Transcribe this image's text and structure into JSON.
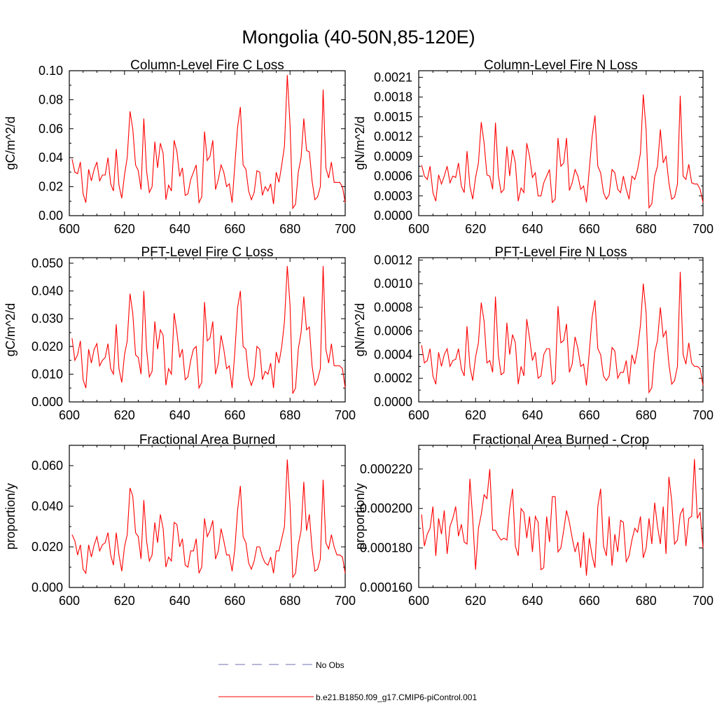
{
  "figure": {
    "title": "Mongolia (40-50N,85-120E)",
    "legend": [
      {
        "label": "No Obs",
        "color": "#6f6fb0",
        "dash": "dashed"
      },
      {
        "label": "b.e21.B1850.f09_g17.CMIP6-piControl.001",
        "color": "#ff0000",
        "dash": "solid"
      }
    ]
  },
  "chart_data": [
    {
      "type": "line",
      "title": "Column-Level Fire C Loss",
      "ylabel": "gC/m^2/d",
      "xlim": [
        600,
        700
      ],
      "ylim": [
        0,
        0.1
      ],
      "xticks": [
        "600",
        "620",
        "640",
        "660",
        "680",
        "700"
      ],
      "yticks": [
        "0.00",
        "0.02",
        "0.04",
        "0.06",
        "0.08",
        "0.10"
      ],
      "color": "#ff0000",
      "x_start": 601,
      "values": [
        0.039,
        0.03,
        0.029,
        0.037,
        0.015,
        0.009,
        0.032,
        0.024,
        0.032,
        0.037,
        0.024,
        0.028,
        0.028,
        0.04,
        0.022,
        0.017,
        0.046,
        0.021,
        0.012,
        0.028,
        0.04,
        0.072,
        0.06,
        0.035,
        0.031,
        0.018,
        0.067,
        0.031,
        0.016,
        0.02,
        0.051,
        0.033,
        0.05,
        0.043,
        0.011,
        0.021,
        0.017,
        0.052,
        0.044,
        0.027,
        0.033,
        0.014,
        0.015,
        0.025,
        0.03,
        0.035,
        0.009,
        0.013,
        0.058,
        0.038,
        0.041,
        0.052,
        0.018,
        0.025,
        0.035,
        0.03,
        0.02,
        0.022,
        0.009,
        0.035,
        0.061,
        0.075,
        0.035,
        0.032,
        0.017,
        0.011,
        0.016,
        0.031,
        0.03,
        0.014,
        0.02,
        0.017,
        0.022,
        0.008,
        0.03,
        0.023,
        0.035,
        0.048,
        0.097,
        0.063,
        0.005,
        0.008,
        0.03,
        0.04,
        0.067,
        0.045,
        0.044,
        0.024,
        0.011,
        0.013,
        0.02,
        0.087,
        0.033,
        0.026,
        0.037,
        0.023,
        0.023,
        0.023,
        0.02,
        0.009
      ]
    },
    {
      "type": "line",
      "title": "Column-Level Fire N Loss",
      "ylabel": "gN/m^2/d",
      "xlim": [
        600,
        700
      ],
      "ylim": [
        0,
        0.0022
      ],
      "xticks": [
        "600",
        "620",
        "640",
        "660",
        "680",
        "700"
      ],
      "yticks": [
        "0.0000",
        "0.0003",
        "0.0006",
        "0.0009",
        "0.0012",
        "0.0015",
        "0.0018",
        "0.0021"
      ],
      "color": "#ff0000",
      "x_start": 601,
      "values": [
        0.00077,
        0.0006,
        0.00055,
        0.00075,
        0.00035,
        0.00022,
        0.00062,
        0.00048,
        0.0006,
        0.00075,
        0.0005,
        0.0006,
        0.00058,
        0.0008,
        0.00045,
        0.00035,
        0.00098,
        0.00045,
        0.00025,
        0.00058,
        0.0008,
        0.00142,
        0.0011,
        0.00062,
        0.0006,
        0.0004,
        0.00141,
        0.00062,
        0.00035,
        0.0004,
        0.00105,
        0.0006,
        0.001,
        0.0008,
        0.00022,
        0.00042,
        0.00035,
        0.0011,
        0.0009,
        0.00058,
        0.00065,
        0.0003,
        0.0003,
        0.0005,
        0.0006,
        0.0007,
        0.0002,
        0.00025,
        0.00118,
        0.00075,
        0.0008,
        0.00118,
        0.00038,
        0.0005,
        0.0007,
        0.0006,
        0.0004,
        0.00045,
        0.0002,
        0.0007,
        0.0012,
        0.00152,
        0.00075,
        0.00065,
        0.00035,
        0.00025,
        0.00032,
        0.0007,
        0.00065,
        0.0004,
        0.00035,
        0.0006,
        0.0004,
        0.00025,
        0.0006,
        0.00055,
        0.0007,
        0.00095,
        0.00184,
        0.0013,
        0.00012,
        0.00018,
        0.0006,
        0.00075,
        0.00131,
        0.0008,
        0.0009,
        0.0005,
        0.00025,
        0.00028,
        0.00048,
        0.00182,
        0.0006,
        0.00055,
        0.00078,
        0.0005,
        0.00048,
        0.00048,
        0.0004,
        0.0002
      ]
    },
    {
      "type": "line",
      "title": "PFT-Level Fire C Loss",
      "ylabel": "gC/m^2/d",
      "xlim": [
        600,
        700
      ],
      "ylim": [
        0,
        0.052
      ],
      "xticks": [
        "600",
        "620",
        "640",
        "660",
        "680",
        "700"
      ],
      "yticks": [
        "0.000",
        "0.010",
        "0.020",
        "0.030",
        "0.040",
        "0.050"
      ],
      "color": "#ff0000",
      "x_start": 601,
      "values": [
        0.023,
        0.015,
        0.017,
        0.022,
        0.008,
        0.005,
        0.019,
        0.014,
        0.019,
        0.021,
        0.013,
        0.015,
        0.016,
        0.021,
        0.012,
        0.01,
        0.028,
        0.012,
        0.007,
        0.017,
        0.022,
        0.039,
        0.032,
        0.017,
        0.016,
        0.01,
        0.04,
        0.019,
        0.009,
        0.011,
        0.029,
        0.019,
        0.026,
        0.024,
        0.006,
        0.012,
        0.01,
        0.032,
        0.025,
        0.016,
        0.019,
        0.008,
        0.009,
        0.015,
        0.019,
        0.02,
        0.005,
        0.007,
        0.036,
        0.022,
        0.023,
        0.029,
        0.01,
        0.014,
        0.024,
        0.019,
        0.012,
        0.013,
        0.005,
        0.018,
        0.034,
        0.04,
        0.02,
        0.019,
        0.009,
        0.006,
        0.009,
        0.02,
        0.019,
        0.008,
        0.011,
        0.01,
        0.014,
        0.005,
        0.018,
        0.014,
        0.02,
        0.029,
        0.049,
        0.035,
        0.003,
        0.005,
        0.019,
        0.025,
        0.038,
        0.026,
        0.027,
        0.013,
        0.006,
        0.008,
        0.012,
        0.049,
        0.019,
        0.014,
        0.021,
        0.013,
        0.013,
        0.013,
        0.012,
        0.005
      ]
    },
    {
      "type": "line",
      "title": "PFT-Level Fire N Loss",
      "ylabel": "gN/m^2/d",
      "xlim": [
        600,
        700
      ],
      "ylim": [
        0,
        0.00122
      ],
      "xticks": [
        "600",
        "620",
        "640",
        "660",
        "680",
        "700"
      ],
      "yticks": [
        "0.0000",
        "0.0002",
        "0.0004",
        "0.0006",
        "0.0008",
        "0.0010",
        "0.0012"
      ],
      "color": "#ff0000",
      "x_start": 601,
      "values": [
        0.00048,
        0.00033,
        0.00035,
        0.00045,
        0.00022,
        0.00015,
        0.00042,
        0.0003,
        0.0004,
        0.00045,
        0.0003,
        0.00035,
        0.00036,
        0.00045,
        0.00028,
        0.00022,
        0.00064,
        0.0003,
        0.00018,
        0.00038,
        0.0005,
        0.00084,
        0.00068,
        0.00033,
        0.00035,
        0.00025,
        0.00089,
        0.0004,
        0.00023,
        0.00025,
        0.00067,
        0.0004,
        0.00057,
        0.0005,
        0.00015,
        0.0003,
        0.00022,
        0.0007,
        0.00054,
        0.00035,
        0.00042,
        0.0002,
        0.00022,
        0.0004,
        0.00045,
        0.00045,
        0.00015,
        0.00018,
        0.00081,
        0.0005,
        0.00052,
        0.00066,
        0.00025,
        0.00032,
        0.00055,
        0.00045,
        0.0003,
        0.00032,
        0.00014,
        0.00042,
        0.00072,
        0.00086,
        0.00045,
        0.0004,
        0.00022,
        0.00018,
        0.00022,
        0.00046,
        0.00043,
        0.0002,
        0.00025,
        0.00025,
        0.00035,
        0.00015,
        0.0004,
        0.00032,
        0.00045,
        0.00065,
        0.001,
        0.00075,
        8e-05,
        0.00012,
        0.00042,
        0.00052,
        0.0008,
        0.00055,
        0.0006,
        0.00032,
        0.00015,
        0.00018,
        0.0003,
        0.0011,
        0.0004,
        0.00032,
        0.0005,
        0.00033,
        0.0003,
        0.0003,
        0.00028,
        0.00014
      ]
    },
    {
      "type": "line",
      "title": "Fractional Area Burned",
      "ylabel": "proportion/y",
      "xlim": [
        600,
        700
      ],
      "ylim": [
        0,
        0.07
      ],
      "xticks": [
        "600",
        "620",
        "640",
        "660",
        "680",
        "700"
      ],
      "yticks": [
        "0.000",
        "0.020",
        "0.040",
        "0.060"
      ],
      "color": "#ff0000",
      "x_start": 601,
      "values": [
        0.026,
        0.023,
        0.016,
        0.021,
        0.009,
        0.007,
        0.021,
        0.015,
        0.021,
        0.025,
        0.018,
        0.021,
        0.022,
        0.027,
        0.016,
        0.011,
        0.027,
        0.016,
        0.008,
        0.02,
        0.026,
        0.049,
        0.045,
        0.027,
        0.025,
        0.014,
        0.043,
        0.023,
        0.013,
        0.016,
        0.032,
        0.022,
        0.036,
        0.029,
        0.01,
        0.015,
        0.013,
        0.032,
        0.031,
        0.02,
        0.024,
        0.011,
        0.01,
        0.018,
        0.018,
        0.024,
        0.007,
        0.01,
        0.034,
        0.025,
        0.028,
        0.033,
        0.014,
        0.018,
        0.029,
        0.023,
        0.016,
        0.016,
        0.008,
        0.019,
        0.038,
        0.05,
        0.025,
        0.022,
        0.012,
        0.009,
        0.013,
        0.02,
        0.02,
        0.015,
        0.012,
        0.011,
        0.015,
        0.007,
        0.018,
        0.018,
        0.024,
        0.03,
        0.063,
        0.041,
        0.005,
        0.007,
        0.021,
        0.028,
        0.052,
        0.028,
        0.036,
        0.019,
        0.008,
        0.009,
        0.014,
        0.053,
        0.022,
        0.019,
        0.026,
        0.02,
        0.016,
        0.016,
        0.015,
        0.007
      ]
    },
    {
      "type": "line",
      "title": "Fractional Area Burned - Crop",
      "ylabel": "proportion/y",
      "xlim": [
        600,
        700
      ],
      "ylim": [
        0.00016,
        0.000232
      ],
      "xticks": [
        "600",
        "620",
        "640",
        "660",
        "680",
        "700"
      ],
      "yticks": [
        "0.000160",
        "0.000180",
        "0.000200",
        "0.000220"
      ],
      "color": "#ff0000",
      "x_start": 601,
      "values": [
        0.000197,
        0.000181,
        0.000187,
        0.00019,
        0.000201,
        0.000176,
        0.000195,
        0.000187,
        0.000199,
        0.000177,
        0.000191,
        0.000195,
        0.000201,
        0.000186,
        0.000192,
        0.000183,
        0.000182,
        0.000215,
        0.000195,
        0.000169,
        0.00019,
        0.000197,
        0.000207,
        0.000205,
        0.00022,
        0.000189,
        0.000189,
        0.000186,
        0.000184,
        0.000185,
        0.000184,
        0.0002,
        0.00021,
        0.000181,
        0.000176,
        0.0002,
        0.000198,
        0.000185,
        0.000196,
        0.000178,
        0.000196,
        0.000193,
        0.000169,
        0.00017,
        0.000196,
        0.000183,
        0.000206,
        0.000206,
        0.000178,
        0.00018,
        0.000189,
        0.000199,
        0.000193,
        0.000185,
        0.000178,
        0.000183,
        0.00017,
        0.000188,
        0.000166,
        0.000185,
        0.000176,
        0.00017,
        0.000201,
        0.00021,
        0.000181,
        0.000176,
        0.000196,
        0.000171,
        0.000187,
        0.000178,
        0.000194,
        0.000193,
        0.000173,
        0.000176,
        0.000184,
        0.00019,
        0.000188,
        0.000196,
        0.000175,
        0.00018,
        0.000195,
        0.000182,
        0.000203,
        0.000191,
        0.000182,
        0.000201,
        0.000177,
        0.000216,
        0.000204,
        0.000182,
        0.000184,
        0.000197,
        0.0002,
        0.000181,
        0.000195,
        0.000196,
        0.000225,
        0.000195,
        0.000198,
        0.00018
      ]
    }
  ]
}
